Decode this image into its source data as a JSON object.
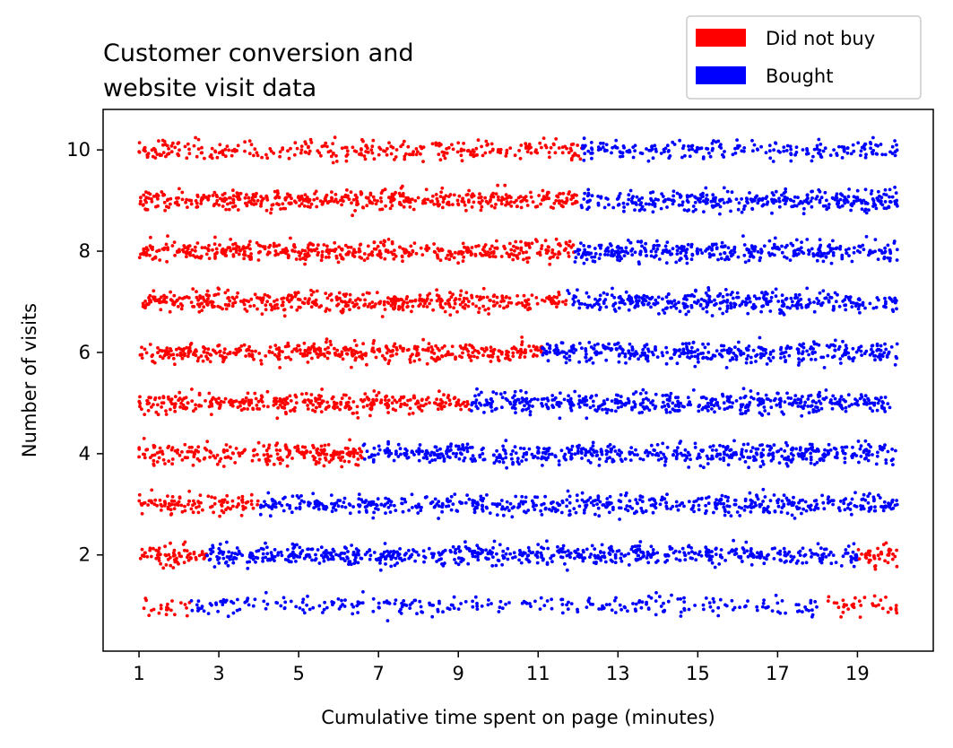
{
  "chart_data": {
    "type": "scatter",
    "title_lines": [
      "Customer conversion and",
      "website visit data"
    ],
    "xlabel": "Cumulative time spent on page (minutes)",
    "ylabel": "Number of visits",
    "xlim": [
      0.1,
      20.9
    ],
    "ylim": [
      0.1,
      10.8
    ],
    "xticks": [
      1,
      3,
      5,
      7,
      9,
      11,
      13,
      15,
      17,
      19
    ],
    "yticks": [
      2,
      4,
      6,
      8,
      10
    ],
    "grid": false,
    "legend_position": "top-right",
    "jitter_y": 0.1,
    "colors": {
      "did_not_buy": "#ff0000",
      "bought": "#0000ff"
    },
    "series": [
      {
        "name": "Did not buy",
        "color_key": "did_not_buy"
      },
      {
        "name": "Bought",
        "color_key": "bought"
      }
    ],
    "rows": [
      {
        "visits": 1,
        "count": 340,
        "segments": [
          {
            "label": "Did not buy",
            "x_start": 1.0,
            "x_end": 2.3
          },
          {
            "label": "Bought",
            "x_start": 2.3,
            "x_end": 18.0
          },
          {
            "label": "Did not buy",
            "x_start": 18.0,
            "x_end": 20.0
          }
        ]
      },
      {
        "visits": 2,
        "count": 800,
        "segments": [
          {
            "label": "Did not buy",
            "x_start": 1.0,
            "x_end": 2.7
          },
          {
            "label": "Bought",
            "x_start": 2.7,
            "x_end": 19.0
          },
          {
            "label": "Did not buy",
            "x_start": 19.0,
            "x_end": 20.0
          }
        ]
      },
      {
        "visits": 3,
        "count": 700,
        "segments": [
          {
            "label": "Did not buy",
            "x_start": 1.0,
            "x_end": 4.0
          },
          {
            "label": "Bought",
            "x_start": 4.0,
            "x_end": 20.0
          }
        ]
      },
      {
        "visits": 4,
        "count": 800,
        "segments": [
          {
            "label": "Did not buy",
            "x_start": 1.0,
            "x_end": 6.6
          },
          {
            "label": "Bought",
            "x_start": 6.6,
            "x_end": 20.0
          }
        ]
      },
      {
        "visits": 5,
        "count": 820,
        "segments": [
          {
            "label": "Did not buy",
            "x_start": 1.0,
            "x_end": 9.3
          },
          {
            "label": "Bought",
            "x_start": 9.3,
            "x_end": 20.0
          }
        ]
      },
      {
        "visits": 6,
        "count": 820,
        "segments": [
          {
            "label": "Did not buy",
            "x_start": 1.0,
            "x_end": 11.1
          },
          {
            "label": "Bought",
            "x_start": 11.1,
            "x_end": 20.0
          }
        ]
      },
      {
        "visits": 7,
        "count": 820,
        "segments": [
          {
            "label": "Did not buy",
            "x_start": 1.0,
            "x_end": 11.7
          },
          {
            "label": "Bought",
            "x_start": 11.7,
            "x_end": 20.0
          }
        ]
      },
      {
        "visits": 8,
        "count": 820,
        "segments": [
          {
            "label": "Did not buy",
            "x_start": 1.0,
            "x_end": 11.9
          },
          {
            "label": "Bought",
            "x_start": 11.9,
            "x_end": 20.0
          }
        ]
      },
      {
        "visits": 9,
        "count": 820,
        "segments": [
          {
            "label": "Did not buy",
            "x_start": 1.0,
            "x_end": 12.0
          },
          {
            "label": "Bought",
            "x_start": 12.0,
            "x_end": 20.0
          }
        ]
      },
      {
        "visits": 10,
        "count": 520,
        "segments": [
          {
            "label": "Did not buy",
            "x_start": 1.0,
            "x_end": 12.1
          },
          {
            "label": "Bought",
            "x_start": 12.1,
            "x_end": 20.0
          }
        ]
      }
    ]
  }
}
